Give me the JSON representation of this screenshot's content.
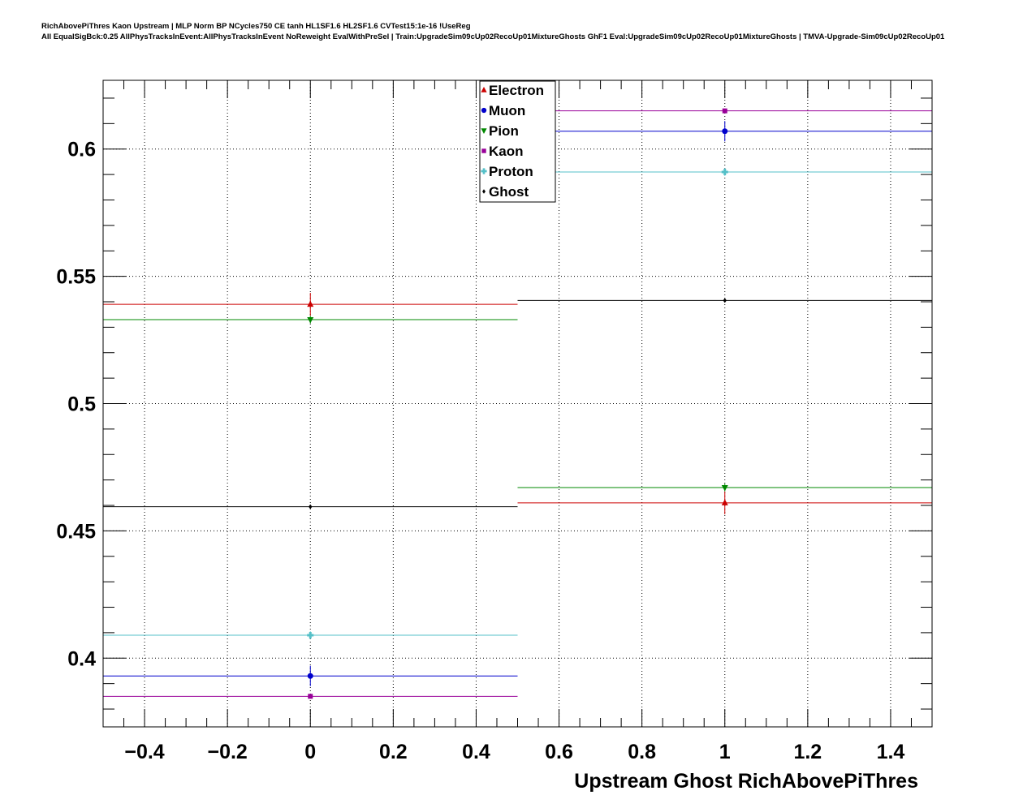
{
  "chart_data": {
    "type": "scatter",
    "title": "RichAbovePiThres Kaon Upstream | MLP Norm BP NCycles750 CE tanh HL1SF1.6 HL2SF1.6 CVTest15:1e-16 !UseReg",
    "subtitle": "All EqualSigBck:0.25 AllPhysTracksInEvent:AllPhysTracksInEvent NoReweight EvalWithPreSel | Train:UpgradeSim09cUp02RecoUp01MixtureGhosts GhF1 Eval:UpgradeSim09cUp02RecoUp01MixtureGhosts | TMVA-Upgrade-Sim09cUp02RecoUp01",
    "xlabel": "Upstream Ghost RichAbovePiThres",
    "ylabel": "",
    "xlim": [
      -0.5,
      1.5
    ],
    "ylim": [
      0.373,
      0.627
    ],
    "x_ticks": [
      "−0.4",
      "−0.2",
      "0",
      "0.2",
      "0.4",
      "0.6",
      "0.8",
      "1",
      "1.2",
      "1.4"
    ],
    "x_tick_values": [
      -0.4,
      -0.2,
      0,
      0.2,
      0.4,
      0.6,
      0.8,
      1,
      1.2,
      1.4
    ],
    "y_ticks": [
      "0.4",
      "0.45",
      "0.5",
      "0.55",
      "0.6"
    ],
    "y_tick_values": [
      0.4,
      0.45,
      0.5,
      0.55,
      0.6
    ],
    "grid": true,
    "legend_position": "top-center",
    "bins": [
      [
        -0.5,
        0.5
      ],
      [
        0.5,
        1.5
      ]
    ],
    "x": [
      0,
      1
    ],
    "series": [
      {
        "name": "Electron",
        "color": "#cc0000",
        "marker": "triangle-up",
        "values": [
          0.539,
          0.461
        ],
        "errors": [
          0.0045,
          0.0045
        ]
      },
      {
        "name": "Muon",
        "color": "#0000cc",
        "marker": "circle",
        "values": [
          0.393,
          0.607
        ],
        "errors": [
          0.004,
          0.004
        ]
      },
      {
        "name": "Pion",
        "color": "#008800",
        "marker": "triangle-down",
        "values": [
          0.533,
          0.467
        ],
        "errors": [
          0.0015,
          0.0015
        ]
      },
      {
        "name": "Kaon",
        "color": "#990099",
        "marker": "square",
        "values": [
          0.385,
          0.615
        ],
        "errors": [
          0.0008,
          0.0008
        ]
      },
      {
        "name": "Proton",
        "color": "#55c0c8",
        "marker": "cross",
        "values": [
          0.409,
          0.591
        ],
        "errors": [
          0.0015,
          0.0015
        ]
      },
      {
        "name": "Ghost",
        "color": "#000000",
        "marker": "diamond",
        "values": [
          0.4595,
          0.5405
        ],
        "errors": [
          0.0005,
          0.0005
        ]
      }
    ]
  }
}
